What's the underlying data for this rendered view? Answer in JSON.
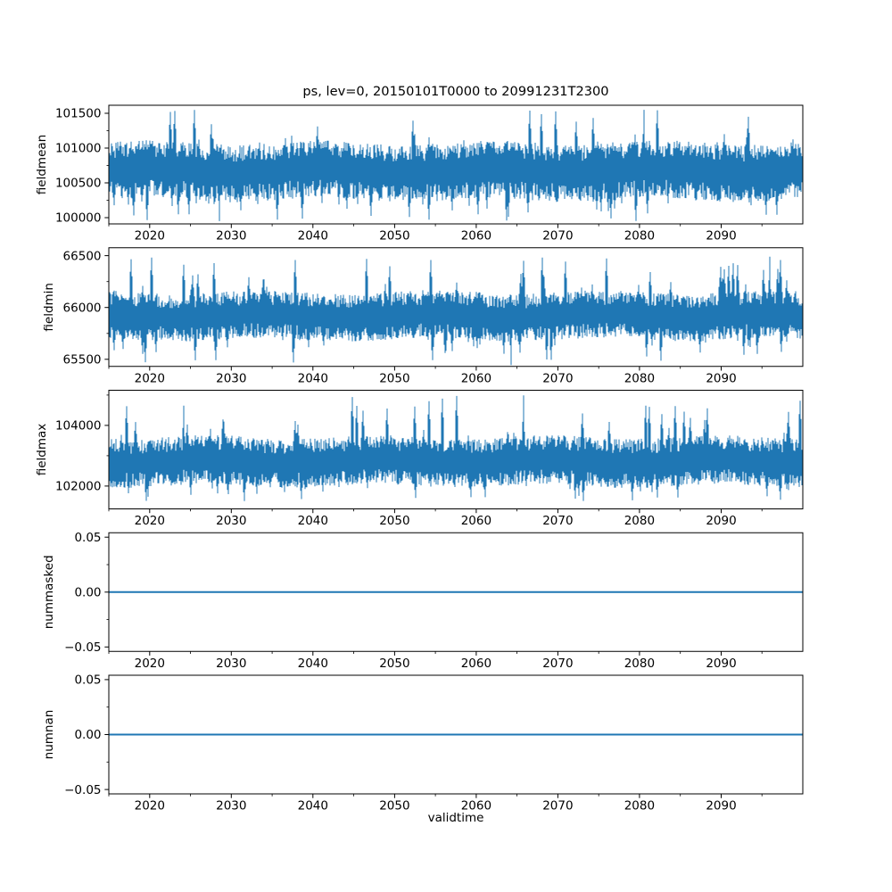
{
  "title": "ps, lev=0, 20150101T0000 to 20991231T2300",
  "xlabel": "validtime",
  "colors": {
    "line": "#1f77b4",
    "axis": "#000000",
    "text": "#000000",
    "background": "#ffffff"
  },
  "x_axis": {
    "label": "validtime",
    "lim": [
      2015,
      2100
    ],
    "ticks": [
      2020,
      2030,
      2040,
      2050,
      2060,
      2070,
      2080,
      2090
    ],
    "tick_labels": [
      "2020",
      "2030",
      "2040",
      "2050",
      "2060",
      "2070",
      "2080",
      "2090"
    ],
    "minor_step": 5
  },
  "chart_data": [
    {
      "type": "line",
      "ylabel": "fieldmean",
      "yticks": [
        100000,
        100500,
        101000,
        101500
      ],
      "ytick_labels": [
        "100000",
        "100500",
        "101000",
        "101500"
      ],
      "ylim": [
        99910,
        101615
      ],
      "series": [
        {
          "name": "fieldmean",
          "style": "dense-noise",
          "center": 100680,
          "dense_low": 100250,
          "dense_high": 101080,
          "min": 99950,
          "max": 101550,
          "extremes": [
            {
              "x": 2028.6,
              "value": 99950
            },
            {
              "x": 2080.5,
              "value": 101550
            }
          ]
        }
      ]
    },
    {
      "type": "line",
      "ylabel": "fieldmin",
      "yticks": [
        65500,
        66000,
        66500
      ],
      "ytick_labels": [
        "65500",
        "66000",
        "66500"
      ],
      "ylim": [
        65432,
        66576
      ],
      "series": [
        {
          "name": "fieldmin",
          "style": "dense-noise",
          "center": 65920,
          "dense_low": 65690,
          "dense_high": 66150,
          "min": 65445,
          "max": 66490,
          "extremes": [
            {
              "x": 2064.3,
              "value": 65445
            },
            {
              "x": 2096.0,
              "value": 66490
            }
          ]
        }
      ]
    },
    {
      "type": "line",
      "ylabel": "fieldmax",
      "yticks": [
        102000,
        104000
      ],
      "ytick_labels": [
        "102000",
        "104000"
      ],
      "ylim": [
        101246,
        105159
      ],
      "series": [
        {
          "name": "fieldmax",
          "style": "dense-noise",
          "center": 102810,
          "dense_low": 102000,
          "dense_high": 103620,
          "min": 101500,
          "max": 104990,
          "extremes": [
            {
              "x": 2065.8,
              "value": 104990
            },
            {
              "x": 2024.2,
              "value": 104650
            }
          ]
        }
      ]
    },
    {
      "type": "line",
      "ylabel": "nummasked",
      "yticks": [
        -0.05,
        0.0,
        0.05
      ],
      "ytick_labels": [
        "−0.05",
        "0.00",
        "0.05"
      ],
      "ylim": [
        -0.054,
        0.054
      ],
      "series": [
        {
          "name": "nummasked",
          "style": "constant",
          "value": 0
        }
      ]
    },
    {
      "type": "line",
      "ylabel": "numnan",
      "yticks": [
        -0.05,
        0.0,
        0.05
      ],
      "ytick_labels": [
        "−0.05",
        "0.00",
        "0.05"
      ],
      "ylim": [
        -0.054,
        0.054
      ],
      "series": [
        {
          "name": "numnan",
          "style": "constant",
          "value": 0
        }
      ]
    }
  ]
}
